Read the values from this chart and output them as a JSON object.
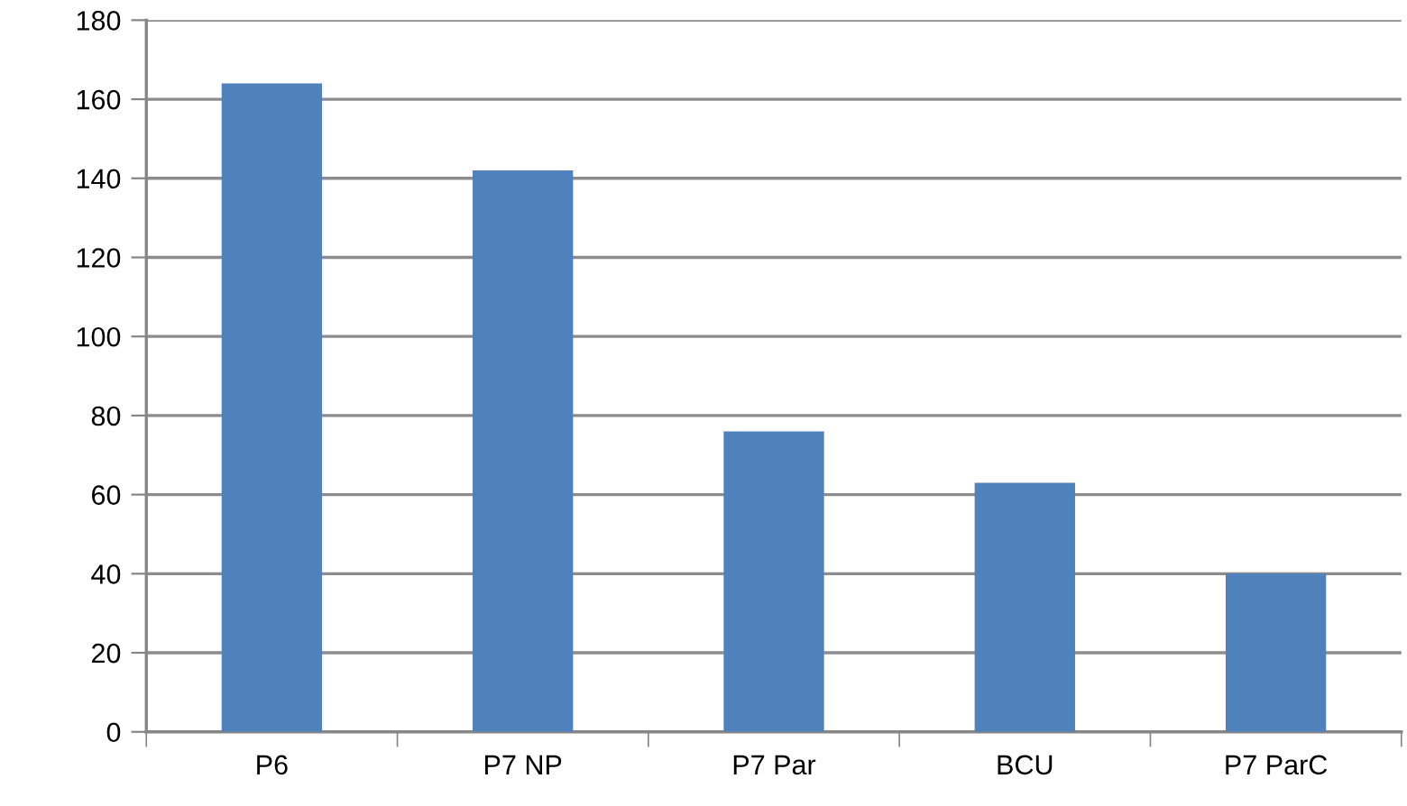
{
  "chart_data": {
    "type": "bar",
    "categories": [
      "P6",
      "P7 NP",
      "P7 Par",
      "BCU",
      "P7 ParC"
    ],
    "values": [
      164,
      142,
      76,
      63,
      40
    ],
    "color": "#4f81bd",
    "ylim": [
      0,
      180
    ],
    "yticks": [
      0,
      20,
      40,
      60,
      80,
      100,
      120,
      140,
      160,
      180
    ],
    "grid": "y",
    "legend": false
  }
}
